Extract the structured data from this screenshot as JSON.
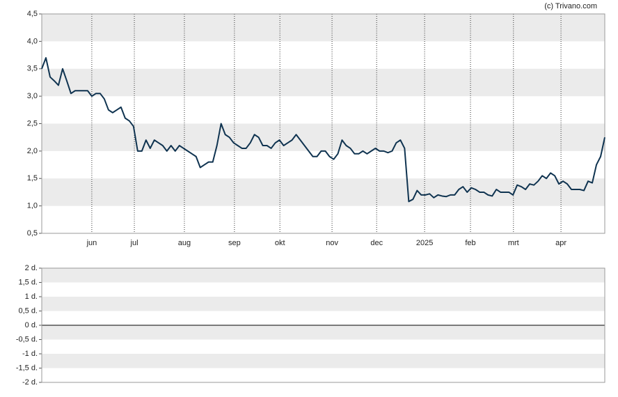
{
  "chart_data": [
    {
      "type": "line",
      "credit": "(c) Trivano.com",
      "color": "#0f3350",
      "values": [
        3.5,
        3.7,
        3.35,
        3.28,
        3.2,
        3.5,
        3.28,
        3.05,
        3.1,
        3.1,
        3.1,
        3.1,
        3.0,
        3.05,
        3.05,
        2.95,
        2.75,
        2.7,
        2.75,
        2.8,
        2.6,
        2.55,
        2.45,
        2.0,
        2.0,
        2.2,
        2.05,
        2.2,
        2.15,
        2.1,
        2.0,
        2.1,
        2.0,
        2.1,
        2.05,
        2.0,
        1.95,
        1.9,
        1.7,
        1.75,
        1.8,
        1.8,
        2.1,
        2.5,
        2.3,
        2.25,
        2.15,
        2.1,
        2.05,
        2.05,
        2.15,
        2.3,
        2.25,
        2.1,
        2.1,
        2.05,
        2.15,
        2.2,
        2.1,
        2.15,
        2.2,
        2.3,
        2.2,
        2.1,
        2.0,
        1.9,
        1.9,
        2.0,
        2.0,
        1.9,
        1.85,
        1.95,
        2.2,
        2.1,
        2.05,
        1.95,
        1.95,
        2.0,
        1.95,
        2.0,
        2.05,
        2.0,
        2.0,
        1.97,
        2.0,
        2.15,
        2.2,
        2.05,
        1.08,
        1.12,
        1.28,
        1.2,
        1.2,
        1.22,
        1.15,
        1.2,
        1.18,
        1.17,
        1.2,
        1.2,
        1.3,
        1.35,
        1.25,
        1.33,
        1.3,
        1.25,
        1.25,
        1.2,
        1.18,
        1.3,
        1.25,
        1.25,
        1.25,
        1.2,
        1.38,
        1.35,
        1.3,
        1.4,
        1.38,
        1.45,
        1.55,
        1.5,
        1.6,
        1.55,
        1.4,
        1.45,
        1.4,
        1.3,
        1.3,
        1.3,
        1.28,
        1.45,
        1.42,
        1.75,
        1.9,
        2.25
      ],
      "xlim": [
        0,
        135
      ],
      "xticks": [
        {
          "value": 12,
          "label": "jun"
        },
        {
          "value": 22.2,
          "label": "jul"
        },
        {
          "value": 34.2,
          "label": "aug"
        },
        {
          "value": 46.2,
          "label": "sep"
        },
        {
          "value": 57.1,
          "label": "okt"
        },
        {
          "value": 69.6,
          "label": "nov"
        },
        {
          "value": 80.3,
          "label": "dec"
        },
        {
          "value": 91.8,
          "label": "2025"
        },
        {
          "value": 102.8,
          "label": "feb"
        },
        {
          "value": 113.1,
          "label": "mrt"
        },
        {
          "value": 124.5,
          "label": "apr"
        }
      ],
      "ylim": [
        0.5,
        4.5
      ],
      "yticks": [
        {
          "value": 0.5,
          "label": "0,5"
        },
        {
          "value": 1,
          "label": "1,0"
        },
        {
          "value": 1.5,
          "label": "1,5"
        },
        {
          "value": 2,
          "label": "2,0"
        },
        {
          "value": 2.5,
          "label": "2,5"
        },
        {
          "value": 3,
          "label": "3,0"
        },
        {
          "value": 3.5,
          "label": "3,5"
        },
        {
          "value": 4,
          "label": "4,0"
        },
        {
          "value": 4.5,
          "label": "4,5"
        }
      ],
      "grid": true
    },
    {
      "type": "bar",
      "ylim": [
        -2,
        2
      ],
      "yticks": [
        {
          "value": -2,
          "label": "-2 d."
        },
        {
          "value": -1.5,
          "label": "-1,5 d."
        },
        {
          "value": -1,
          "label": "-1 d."
        },
        {
          "value": -0.5,
          "label": "-0,5 d."
        },
        {
          "value": 0,
          "label": "0 d."
        },
        {
          "value": 0.5,
          "label": "0,5 d."
        },
        {
          "value": 1,
          "label": "1 d."
        },
        {
          "value": 1.5,
          "label": "1,5 d."
        },
        {
          "value": 2,
          "label": "2 d."
        }
      ],
      "grid": true
    }
  ]
}
